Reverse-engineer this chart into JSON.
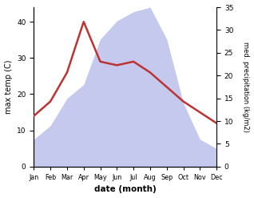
{
  "months": [
    "Jan",
    "Feb",
    "Mar",
    "Apr",
    "May",
    "Jun",
    "Jul",
    "Aug",
    "Sep",
    "Oct",
    "Nov",
    "Dec"
  ],
  "temperature": [
    14,
    18,
    26,
    40,
    29,
    28,
    29,
    26,
    22,
    18,
    15,
    12
  ],
  "precipitation": [
    6,
    9,
    15,
    18,
    28,
    32,
    34,
    35,
    28,
    14,
    6,
    4
  ],
  "temp_color": "#bb3333",
  "precip_color": "#b0b8e8",
  "ylabel_left": "max temp (C)",
  "ylabel_right": "med. precipitation (kg/m2)",
  "xlabel": "date (month)",
  "ylim_left": [
    0,
    44
  ],
  "ylim_right": [
    0,
    35
  ],
  "yticks_left": [
    0,
    10,
    20,
    30,
    40
  ],
  "yticks_right": [
    0,
    5,
    10,
    15,
    20,
    25,
    30,
    35
  ],
  "background_color": "#ffffff",
  "fig_background": "#ffffff"
}
